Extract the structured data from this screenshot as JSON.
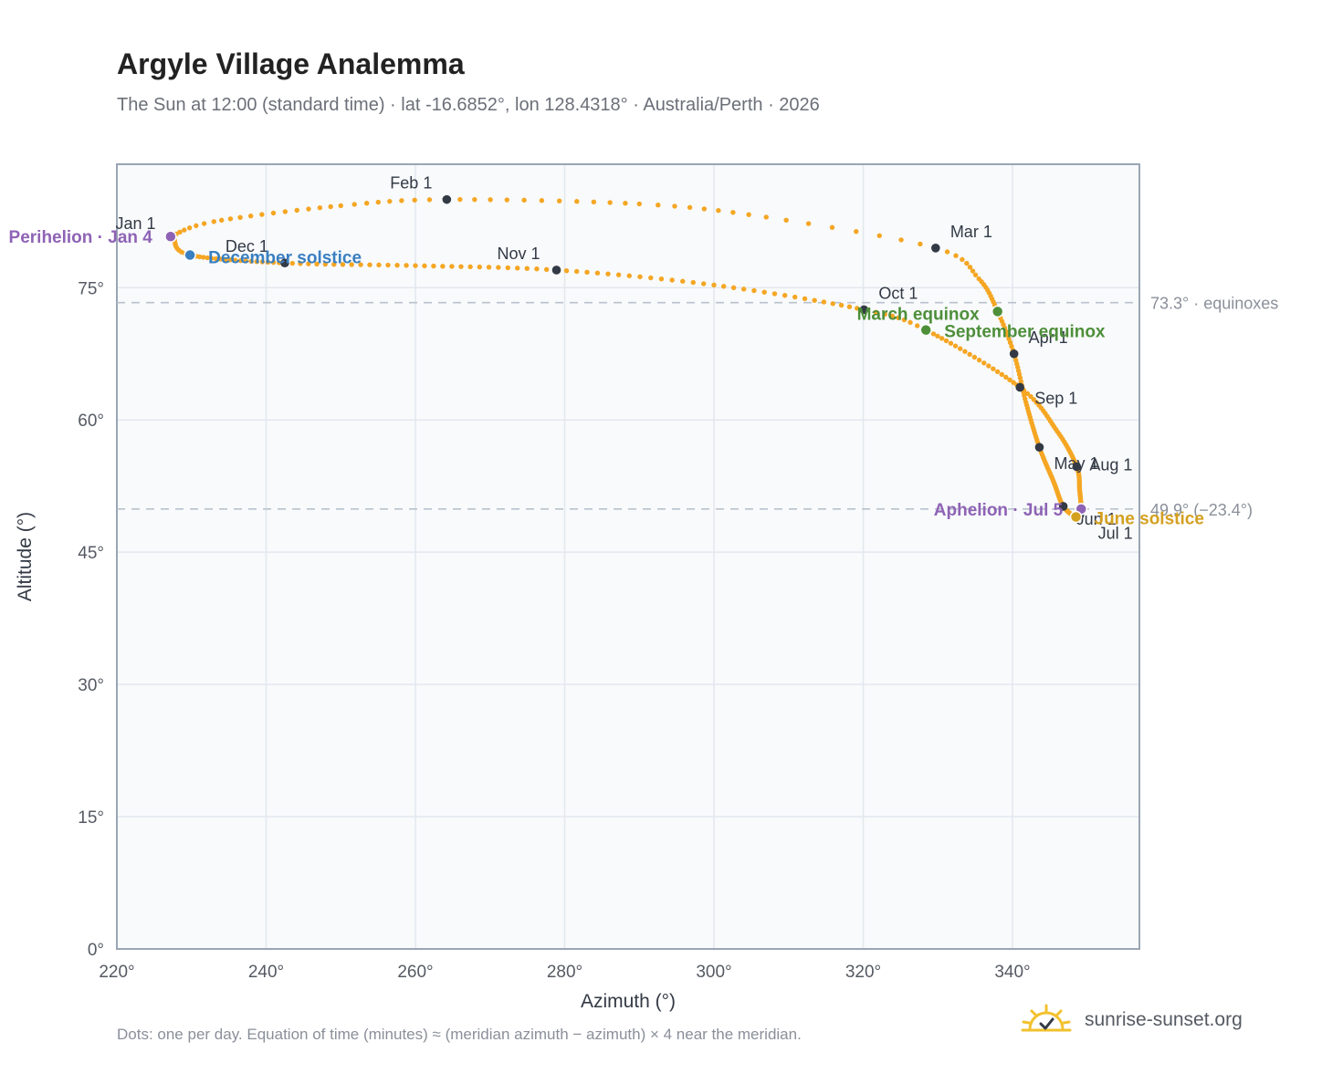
{
  "title": "Argyle Village Analemma",
  "subtitle": "The Sun at 12:00 (standard time) · lat -16.6852°, lon 128.4318° · Australia/Perth · 2026",
  "footnote": "Dots: one per day. Equation of time (minutes) ≈ (meridian azimuth − azimuth) × 4 near the meridian.",
  "brand": {
    "name": "sunrise-sunset.org",
    "icon": "sun-logo-icon"
  },
  "colors": {
    "curve": "#f5a623",
    "month_marker": "#333a45",
    "perihelion": "#8e63b5",
    "december_solstice": "#3a7fc1",
    "equinox": "#4e8f3a",
    "june_solstice": "#d4a020",
    "axis": "#9aa5b4",
    "grid": "#e3e8ee",
    "plot_bg": "#f8fafc",
    "ref_line": "#b9c2cc"
  },
  "chart_data": {
    "type": "scatter",
    "xlabel": "Azimuth (°)",
    "ylabel": "Altitude (°)",
    "xlim": [
      220,
      357
    ],
    "ylim": [
      0,
      89
    ],
    "xticks": [
      220,
      240,
      260,
      280,
      300,
      320,
      340
    ],
    "yticks": [
      0,
      15,
      30,
      45,
      60,
      75
    ],
    "x_tick_labels": [
      "220°",
      "240°",
      "260°",
      "280°",
      "300°",
      "320°",
      "340°"
    ],
    "y_tick_labels": [
      "0°",
      "15°",
      "30°",
      "45°",
      "60°",
      "75°"
    ],
    "grid": true,
    "reference_lines": [
      {
        "altitude": 73.3,
        "label": "73.3° · equinoxes"
      },
      {
        "altitude": 49.9,
        "label": "49.9° (−23.4°)"
      }
    ],
    "series": [
      {
        "kind": "daily_positions",
        "points_per_day": 1,
        "anchors": [
          {
            "doy": 1,
            "az": 227.4,
            "alt": 80.8
          },
          {
            "doy": 4,
            "az": 227.2,
            "alt": 80.8
          },
          {
            "doy": 12,
            "az": 233.0,
            "alt": 82.5
          },
          {
            "doy": 24,
            "az": 250.0,
            "alt": 84.3
          },
          {
            "doy": 32,
            "az": 264.2,
            "alt": 85.0
          },
          {
            "doy": 44,
            "az": 290.0,
            "alt": 84.5
          },
          {
            "doy": 52,
            "az": 307.0,
            "alt": 83.0
          },
          {
            "doy": 60,
            "az": 329.7,
            "alt": 79.5
          },
          {
            "doy": 68,
            "az": 335.5,
            "alt": 76.0
          },
          {
            "doy": 79,
            "az": 338.0,
            "alt": 72.3
          },
          {
            "doy": 91,
            "az": 340.2,
            "alt": 67.5
          },
          {
            "doy": 105,
            "az": 341.8,
            "alt": 62.0
          },
          {
            "doy": 121,
            "az": 343.6,
            "alt": 56.9
          },
          {
            "doy": 136,
            "az": 345.5,
            "alt": 53.0
          },
          {
            "doy": 152,
            "az": 346.8,
            "alt": 50.2
          },
          {
            "doy": 172,
            "az": 348.5,
            "alt": 49.0
          },
          {
            "doy": 182,
            "az": 349.0,
            "alt": 49.2
          },
          {
            "doy": 186,
            "az": 349.2,
            "alt": 49.9
          },
          {
            "doy": 200,
            "az": 349.0,
            "alt": 52.0
          },
          {
            "doy": 213,
            "az": 348.6,
            "alt": 54.7
          },
          {
            "doy": 228,
            "az": 346.0,
            "alt": 58.7
          },
          {
            "doy": 244,
            "az": 341.0,
            "alt": 63.7
          },
          {
            "doy": 266,
            "az": 328.4,
            "alt": 70.2
          },
          {
            "doy": 274,
            "az": 320.1,
            "alt": 72.5
          },
          {
            "doy": 290,
            "az": 300.0,
            "alt": 75.3
          },
          {
            "doy": 305,
            "az": 278.9,
            "alt": 77.0
          },
          {
            "doy": 320,
            "az": 260.0,
            "alt": 77.5
          },
          {
            "doy": 335,
            "az": 242.5,
            "alt": 77.8
          },
          {
            "doy": 355,
            "az": 229.8,
            "alt": 78.7
          },
          {
            "doy": 365,
            "az": 227.6,
            "alt": 80.6
          },
          {
            "doy": 366,
            "az": 227.4,
            "alt": 80.8
          }
        ]
      }
    ],
    "month_markers": [
      {
        "label": "Jan 1",
        "az": 227.4,
        "alt": 80.8
      },
      {
        "label": "Feb 1",
        "az": 264.2,
        "alt": 85.0
      },
      {
        "label": "Mar 1",
        "az": 329.7,
        "alt": 79.5
      },
      {
        "label": "Apr 1",
        "az": 340.2,
        "alt": 67.5
      },
      {
        "label": "May 1",
        "az": 343.6,
        "alt": 56.9
      },
      {
        "label": "Jun 1",
        "az": 346.8,
        "alt": 50.2
      },
      {
        "label": "Jul 1",
        "az": 349.0,
        "alt": 49.2
      },
      {
        "label": "Aug 1",
        "az": 348.6,
        "alt": 54.7
      },
      {
        "label": "Sep 1",
        "az": 341.0,
        "alt": 63.7
      },
      {
        "label": "Oct 1",
        "az": 320.1,
        "alt": 72.5
      },
      {
        "label": "Nov 1",
        "az": 278.9,
        "alt": 77.0
      },
      {
        "label": "Dec 1",
        "az": 242.5,
        "alt": 77.8
      }
    ],
    "events": [
      {
        "label": "Perihelion · Jan 4",
        "az": 227.2,
        "alt": 80.8,
        "color_key": "perihelion"
      },
      {
        "label": "December solstice",
        "az": 229.8,
        "alt": 78.7,
        "color_key": "december_solstice"
      },
      {
        "label": "March equinox",
        "az": 338.0,
        "alt": 72.3,
        "color_key": "equinox"
      },
      {
        "label": "September equinox",
        "az": 328.4,
        "alt": 70.2,
        "color_key": "equinox"
      },
      {
        "label": "Aphelion · Jul 5",
        "az": 349.2,
        "alt": 49.9,
        "color_key": "perihelion"
      },
      {
        "label": "June solstice",
        "az": 348.5,
        "alt": 49.0,
        "color_key": "june_solstice"
      }
    ]
  }
}
